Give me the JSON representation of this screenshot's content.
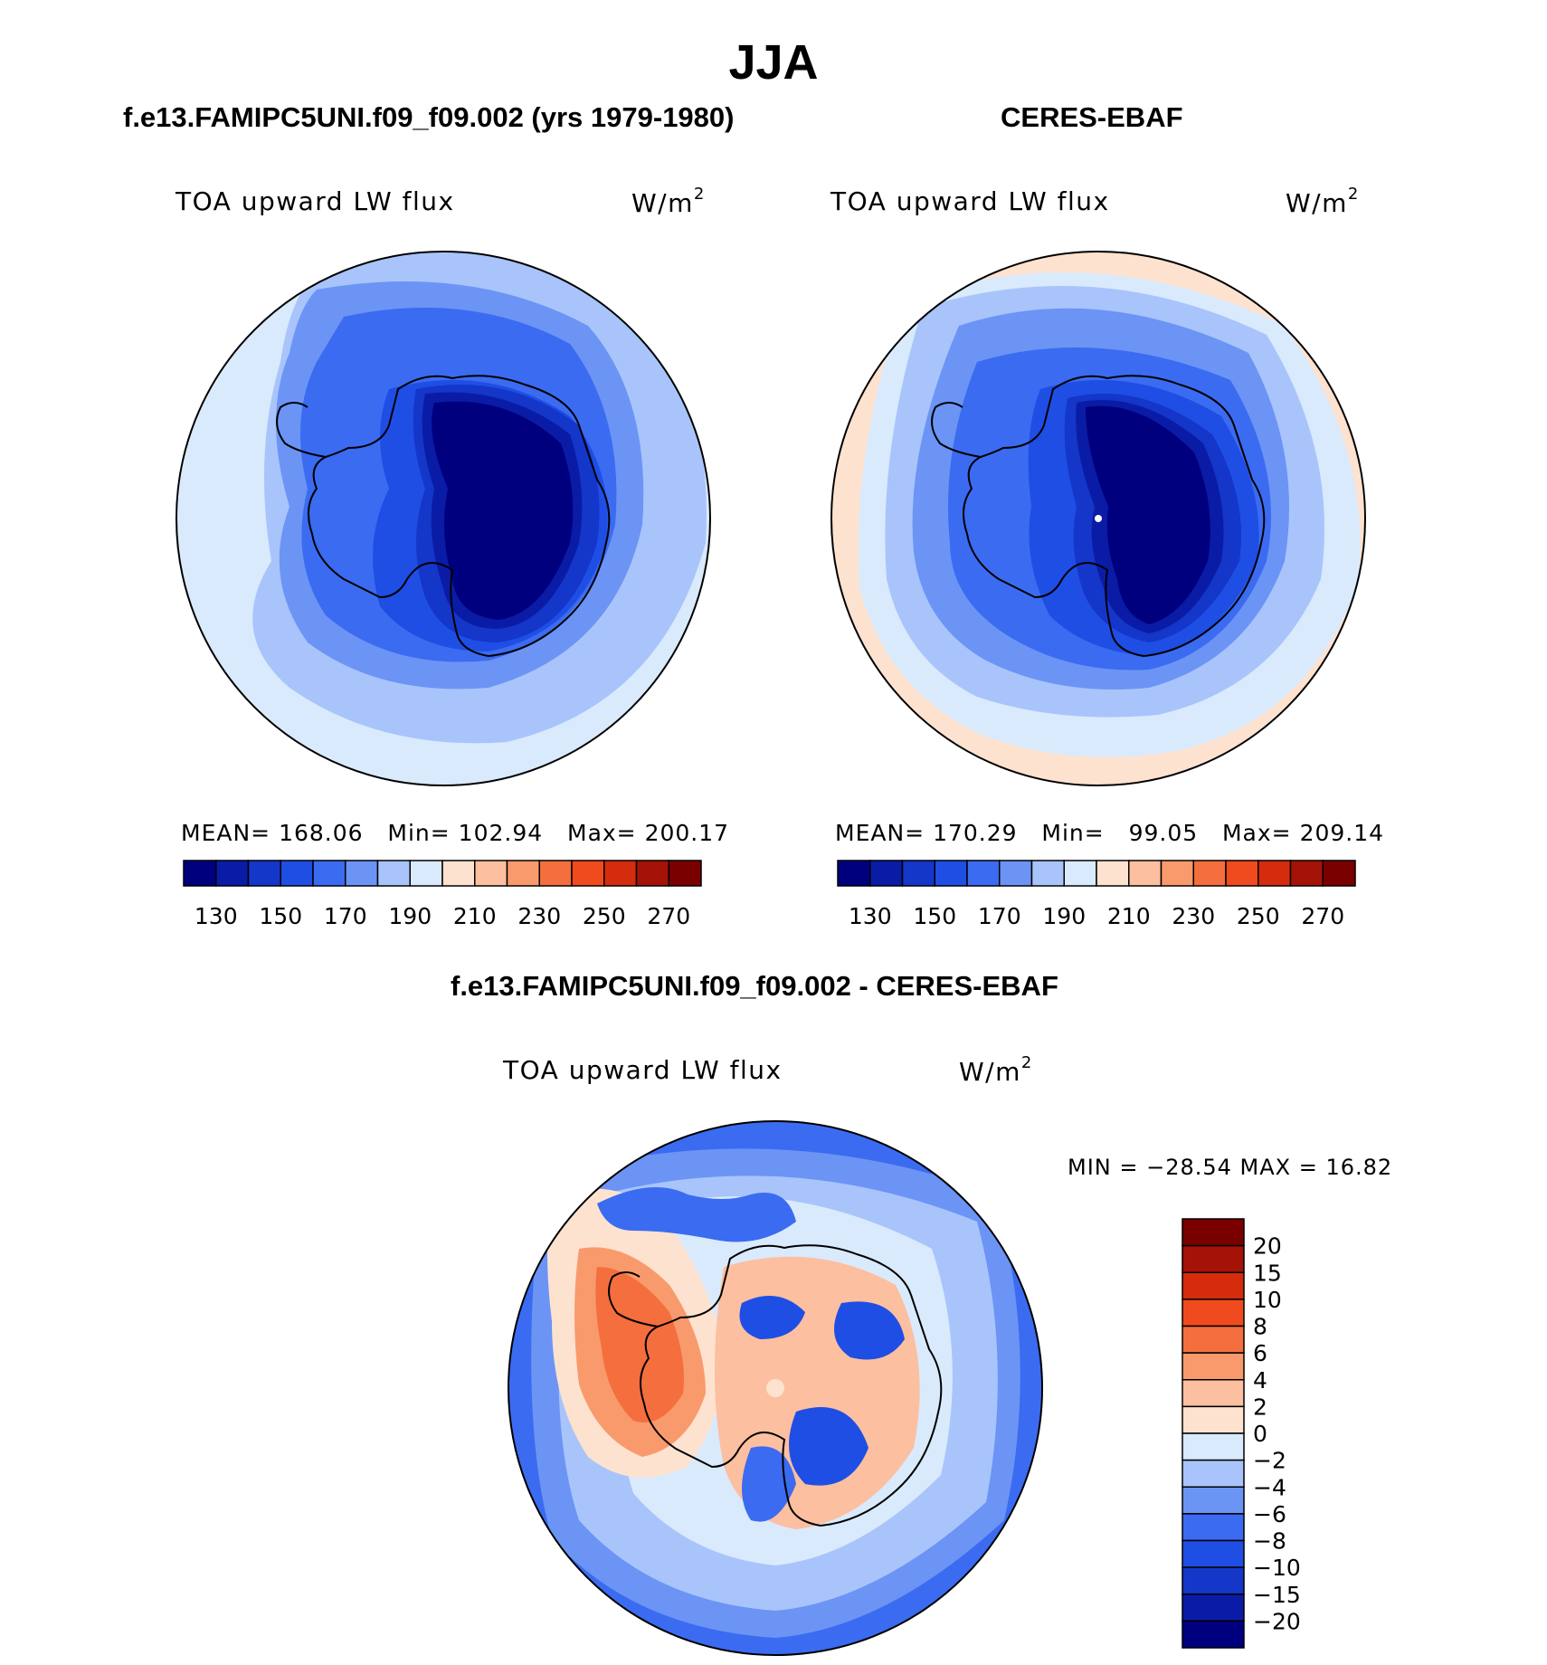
{
  "main_title": "JJA",
  "panels": [
    {
      "title": "f.e13.FAMIPC5UNI.f09_f09.002 (yrs 1979-1980)",
      "variable": "TOA upward LW flux",
      "units": "W/m",
      "units_sup": "2",
      "stats": {
        "mean_label": "MEAN=",
        "mean": "168.06",
        "min_label": "Min=",
        "min": "102.94",
        "max_label": "Max=",
        "max": "200.17"
      }
    },
    {
      "title": "CERES-EBAF",
      "variable": "TOA upward LW flux",
      "units": "W/m",
      "units_sup": "2",
      "stats": {
        "mean_label": "MEAN=",
        "mean": "170.29",
        "min_label": "Min=",
        "min": "99.05",
        "max_label": "Max=",
        "max": "209.14"
      }
    }
  ],
  "diff_panel": {
    "title": "f.e13.FAMIPC5UNI.f09_f09.002 - CERES-EBAF",
    "variable": "TOA upward LW flux",
    "units": "W/m",
    "units_sup": "2",
    "minmax_text": "MIN = −28.54 MAX =   16.82"
  },
  "colorbar_top": {
    "colors": [
      "#00007f",
      "#0a1ca6",
      "#1436c9",
      "#1f4ee5",
      "#3b6bf0",
      "#6b94f5",
      "#a8c4fb",
      "#d9eafd",
      "#fde2cf",
      "#fcbf9f",
      "#f99a6d",
      "#f56e3e",
      "#f04b1e",
      "#d52c0e",
      "#a51208",
      "#7a0000"
    ],
    "labels": [
      "130",
      "150",
      "170",
      "190",
      "210",
      "230",
      "250",
      "270"
    ]
  },
  "colorbar_diff": {
    "colors": [
      "#7a0000",
      "#a51208",
      "#d52c0e",
      "#f04b1e",
      "#f56e3e",
      "#f99a6d",
      "#fcbf9f",
      "#fde2cf",
      "#d9eafd",
      "#a8c4fb",
      "#6b94f5",
      "#3b6bf0",
      "#1f4ee5",
      "#1436c9",
      "#0a1ca6",
      "#00007f"
    ],
    "labels": [
      "20",
      "15",
      "10",
      "8",
      "6",
      "4",
      "2",
      "0",
      "−2",
      "−4",
      "−6",
      "−8",
      "−10",
      "−15",
      "−20"
    ]
  }
}
